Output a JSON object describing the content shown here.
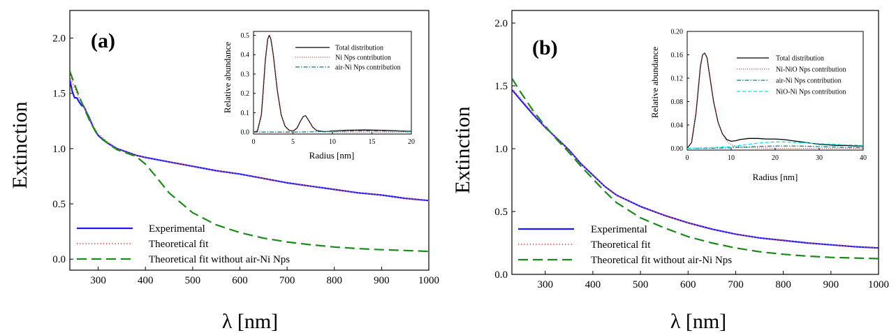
{
  "figure": {
    "panels": [
      {
        "label": "(a)",
        "xlabel": "λ [nm]",
        "ylabel": "Extinction",
        "legend": [
          "Experimental",
          "Theoretical fit",
          "Theoretical fit without air-Ni Nps"
        ],
        "inset": {
          "xlabel": "Radius [nm]",
          "ylabel": "Relative abundance",
          "legend": [
            "Total distribution",
            "Ni Nps contribution",
            "air-Ni Nps contribution"
          ]
        }
      },
      {
        "label": "(b)",
        "xlabel": "λ [nm]",
        "ylabel": "Extinction",
        "legend": [
          "Experimental",
          "Theoretical fit",
          "Theoretical fit without air-Ni Nps"
        ],
        "inset": {
          "xlabel": "Radius [nm]",
          "ylabel": "Relative abundance",
          "legend": [
            "Total distribution",
            "Ni-NiO Nps contribution",
            "air-Ni Nps contribution",
            "NiO-Ni Nps contribution"
          ]
        }
      }
    ]
  },
  "colors": {
    "experimental": "#1a1aff",
    "theoretical_fit": "#e06060",
    "without_air_ni": "#1a8a1a",
    "total": "#000000",
    "ni_contribution": "#d04040",
    "air_ni": "#1a7a8a",
    "nio_ni": "#00e5ee"
  },
  "chart_data": [
    {
      "type": "line",
      "title": "",
      "panel": "(a)",
      "xlabel": "λ [nm]",
      "ylabel": "Extinction",
      "xlim": [
        240,
        1000
      ],
      "ylim": [
        -0.1,
        2.25
      ],
      "xticks": [
        300,
        400,
        500,
        600,
        700,
        800,
        900,
        1000
      ],
      "yticks": [
        0.0,
        0.5,
        1.0,
        1.5,
        2.0
      ],
      "legend_position": "bottom-left",
      "series": [
        {
          "name": "Experimental",
          "style": "solid",
          "x": [
            240,
            245,
            250,
            255,
            260,
            265,
            270,
            275,
            280,
            285,
            290,
            295,
            300,
            310,
            320,
            340,
            360,
            380,
            400,
            450,
            500,
            550,
            600,
            650,
            700,
            750,
            800,
            850,
            900,
            950,
            1000
          ],
          "y": [
            1.62,
            1.52,
            1.46,
            1.46,
            1.42,
            1.39,
            1.38,
            1.33,
            1.29,
            1.24,
            1.19,
            1.15,
            1.12,
            1.08,
            1.05,
            1.0,
            0.97,
            0.94,
            0.92,
            0.88,
            0.84,
            0.8,
            0.77,
            0.73,
            0.69,
            0.66,
            0.63,
            0.6,
            0.58,
            0.55,
            0.53
          ]
        },
        {
          "name": "Theoretical fit",
          "style": "dotted",
          "x": [
            240,
            250,
            260,
            270,
            280,
            290,
            300,
            320,
            340,
            360,
            380,
            400,
            450,
            500,
            550,
            600,
            650,
            700,
            750,
            800,
            850,
            900,
            950,
            1000
          ],
          "y": [
            1.66,
            1.55,
            1.46,
            1.38,
            1.29,
            1.2,
            1.13,
            1.06,
            1.0,
            0.97,
            0.94,
            0.92,
            0.88,
            0.84,
            0.8,
            0.77,
            0.73,
            0.69,
            0.66,
            0.63,
            0.6,
            0.58,
            0.55,
            0.53
          ]
        },
        {
          "name": "Theoretical fit without air-Ni Nps",
          "style": "dashed",
          "x": [
            240,
            250,
            260,
            270,
            280,
            290,
            300,
            320,
            340,
            360,
            380,
            400,
            420,
            450,
            500,
            550,
            600,
            650,
            700,
            750,
            800,
            850,
            900,
            950,
            1000
          ],
          "y": [
            1.7,
            1.58,
            1.47,
            1.37,
            1.27,
            1.19,
            1.12,
            1.05,
            0.99,
            0.96,
            0.93,
            0.86,
            0.76,
            0.6,
            0.42,
            0.31,
            0.24,
            0.19,
            0.155,
            0.13,
            0.11,
            0.095,
            0.085,
            0.078,
            0.07
          ]
        }
      ],
      "inset": {
        "type": "line",
        "xlabel": "Radius [nm]",
        "ylabel": "Relative abundance",
        "xlim": [
          0,
          20
        ],
        "ylim": [
          -0.01,
          0.52
        ],
        "xticks": [
          0,
          5,
          10,
          15,
          20
        ],
        "yticks": [
          0.0,
          0.1,
          0.2,
          0.3,
          0.4,
          0.5
        ],
        "legend_position": "top-right",
        "series": [
          {
            "name": "Total distribution",
            "style": "solid",
            "x": [
              0,
              0.5,
              1.0,
              1.2,
              1.5,
              1.8,
              2.0,
              2.2,
              2.5,
              3.0,
              3.5,
              4.0,
              4.5,
              5.0,
              5.5,
              6.0,
              6.3,
              6.6,
              7.0,
              7.5,
              8.0,
              9.0,
              10,
              12,
              14,
              16,
              18,
              20
            ],
            "y": [
              0,
              0.005,
              0.09,
              0.2,
              0.37,
              0.48,
              0.5,
              0.48,
              0.4,
              0.22,
              0.09,
              0.03,
              0.01,
              0.005,
              0.02,
              0.06,
              0.08,
              0.085,
              0.06,
              0.025,
              0.008,
              0.002,
              0.006,
              0.01,
              0.011,
              0.01,
              0.007,
              0.004
            ]
          },
          {
            "name": "Ni Nps contribution",
            "style": "dotted",
            "x": [
              0,
              0.5,
              1.0,
              1.2,
              1.5,
              1.8,
              2.0,
              2.2,
              2.5,
              3.0,
              3.5,
              4.0,
              4.5,
              5.0,
              5.5,
              6.0,
              6.3,
              6.6,
              7.0,
              7.5,
              8.0,
              9.0,
              10,
              20
            ],
            "y": [
              0,
              0.005,
              0.09,
              0.2,
              0.37,
              0.48,
              0.5,
              0.48,
              0.4,
              0.22,
              0.09,
              0.03,
              0.01,
              0.005,
              0.02,
              0.06,
              0.08,
              0.085,
              0.06,
              0.025,
              0.008,
              0.002,
              0.0,
              0.0
            ]
          },
          {
            "name": "air-Ni Nps contribution",
            "style": "dashdot",
            "x": [
              0,
              5,
              8,
              10,
              12,
              14,
              16,
              18,
              20
            ],
            "y": [
              0.0,
              0.0,
              0.002,
              0.004,
              0.006,
              0.007,
              0.006,
              0.005,
              0.003
            ]
          }
        ]
      }
    },
    {
      "type": "line",
      "title": "",
      "panel": "(b)",
      "xlabel": "λ [nm]",
      "ylabel": "Extinction",
      "xlim": [
        230,
        1000
      ],
      "ylim": [
        0.0,
        2.1
      ],
      "xticks": [
        300,
        400,
        500,
        600,
        700,
        800,
        900,
        1000
      ],
      "yticks": [
        0.0,
        0.5,
        1.0,
        1.5,
        2.0
      ],
      "legend_position": "bottom-left",
      "series": [
        {
          "name": "Experimental",
          "style": "solid",
          "x": [
            230,
            250,
            275,
            300,
            325,
            350,
            375,
            400,
            425,
            450,
            500,
            550,
            600,
            650,
            700,
            750,
            800,
            850,
            900,
            950,
            1000
          ],
          "y": [
            1.47,
            1.38,
            1.27,
            1.17,
            1.08,
            0.99,
            0.88,
            0.79,
            0.7,
            0.63,
            0.54,
            0.47,
            0.41,
            0.36,
            0.32,
            0.29,
            0.27,
            0.25,
            0.235,
            0.22,
            0.21
          ]
        },
        {
          "name": "Theoretical fit",
          "style": "dotted",
          "x": [
            230,
            250,
            275,
            300,
            325,
            350,
            375,
            400,
            425,
            450,
            500,
            550,
            600,
            650,
            700,
            750,
            800,
            850,
            900,
            950,
            1000
          ],
          "y": [
            1.48,
            1.39,
            1.28,
            1.17,
            1.08,
            0.99,
            0.88,
            0.79,
            0.7,
            0.63,
            0.54,
            0.47,
            0.41,
            0.36,
            0.32,
            0.29,
            0.27,
            0.25,
            0.235,
            0.22,
            0.21
          ]
        },
        {
          "name": "Theoretical fit without air-Ni Nps",
          "style": "dashed",
          "x": [
            230,
            250,
            275,
            300,
            325,
            350,
            375,
            400,
            425,
            450,
            500,
            550,
            600,
            650,
            700,
            750,
            800,
            850,
            900,
            950,
            1000
          ],
          "y": [
            1.56,
            1.44,
            1.3,
            1.18,
            1.07,
            0.97,
            0.86,
            0.76,
            0.66,
            0.57,
            0.45,
            0.37,
            0.3,
            0.25,
            0.21,
            0.18,
            0.16,
            0.145,
            0.135,
            0.13,
            0.125
          ]
        }
      ],
      "inset": {
        "type": "line",
        "xlabel": "Radius [nm]",
        "ylabel": "Relative abundance",
        "xlim": [
          0,
          40
        ],
        "ylim": [
          -0.003,
          0.2
        ],
        "xticks": [
          0,
          10,
          20,
          30,
          40
        ],
        "yticks": [
          0.0,
          0.04,
          0.08,
          0.12,
          0.16,
          0.2
        ],
        "legend_position": "top-right",
        "series": [
          {
            "name": "Total distribution",
            "style": "solid",
            "x": [
              0,
              1,
              2,
              2.5,
              3,
              3.5,
              4,
              4.5,
              5,
              6,
              7,
              8,
              9,
              10,
              11,
              12,
              14,
              16,
              18,
              20,
              22,
              24,
              26,
              28,
              30,
              32,
              34,
              36,
              38,
              40
            ],
            "y": [
              0.0,
              0.01,
              0.06,
              0.1,
              0.14,
              0.16,
              0.163,
              0.155,
              0.13,
              0.08,
              0.045,
              0.025,
              0.015,
              0.012,
              0.013,
              0.015,
              0.017,
              0.017,
              0.016,
              0.016,
              0.015,
              0.013,
              0.011,
              0.009,
              0.007,
              0.006,
              0.005,
              0.005,
              0.004,
              0.004
            ]
          },
          {
            "name": "Ni-NiO Nps contribution",
            "style": "dotted",
            "x": [
              0,
              1,
              2,
              2.5,
              3,
              3.5,
              4,
              4.5,
              5,
              6,
              7,
              8,
              9,
              10,
              12,
              15,
              20,
              40
            ],
            "y": [
              0.0,
              0.01,
              0.06,
              0.1,
              0.14,
              0.16,
              0.163,
              0.155,
              0.13,
              0.08,
              0.045,
              0.025,
              0.012,
              0.006,
              0.002,
              0.001,
              0.0,
              0.0
            ]
          },
          {
            "name": "air-Ni Nps contribution",
            "style": "dashdot",
            "x": [
              0,
              5,
              10,
              15,
              20,
              25,
              30,
              35,
              40
            ],
            "y": [
              0.0,
              0.0,
              0.001,
              0.003,
              0.004,
              0.004,
              0.003,
              0.002,
              0.001
            ]
          },
          {
            "name": "NiO-Ni Nps contribution",
            "style": "dashed",
            "x": [
              0,
              5,
              10,
              12,
              15,
              18,
              20,
              22,
              25,
              28,
              30,
              33,
              36,
              40
            ],
            "y": [
              0.0,
              0.001,
              0.003,
              0.005,
              0.008,
              0.01,
              0.011,
              0.011,
              0.01,
              0.009,
              0.008,
              0.007,
              0.006,
              0.005
            ]
          }
        ]
      }
    }
  ]
}
